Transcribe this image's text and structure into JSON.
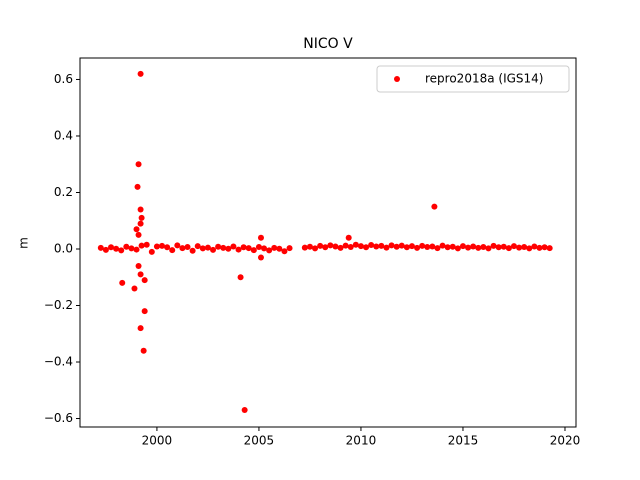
{
  "chart_data": {
    "type": "scatter",
    "title": "NICO V",
    "ylabel": "m",
    "series": [
      {
        "name": "repro2018a (IGS14)",
        "color": "#ff0000",
        "x": [
          1997.25,
          1997.5,
          1997.75,
          1998,
          1998.25,
          1998.5,
          1998.75,
          1999,
          1999.25,
          1999.5,
          1999.75,
          2000,
          2000.25,
          2000.5,
          2000.75,
          2001,
          2001.25,
          2001.5,
          2001.75,
          2002,
          2002.25,
          2002.5,
          2002.75,
          2003,
          2003.25,
          2003.5,
          2003.75,
          2004,
          2004.25,
          2004.5,
          2004.75,
          2005,
          2005.25,
          2005.5,
          2005.75,
          2006,
          2006.25,
          2006.5,
          2007.25,
          2007.5,
          2007.75,
          2008,
          2008.25,
          2008.5,
          2008.75,
          2009,
          2009.25,
          2009.5,
          2009.75,
          2010,
          2010.25,
          2010.5,
          2010.75,
          2011,
          2011.25,
          2011.5,
          2011.75,
          2012,
          2012.25,
          2012.5,
          2012.75,
          2013,
          2013.25,
          2013.5,
          2013.75,
          2014,
          2014.25,
          2014.5,
          2014.75,
          2015,
          2015.25,
          2015.5,
          2015.75,
          2016,
          2016.25,
          2016.5,
          2016.75,
          2017,
          2017.25,
          2017.5,
          2017.75,
          2018,
          2018.25,
          2018.5,
          2018.75,
          2019,
          2019.25,
          1999.2,
          1999.1,
          1999.05,
          1999.2,
          1999.25,
          1999.2,
          1999.0,
          1999.1,
          1998.3,
          1998.9,
          1999.2,
          1999.4,
          1999.35,
          1999.4,
          1999.1,
          1999.2,
          2004.1,
          2004.3,
          2013.6,
          2009.4,
          2005.1,
          2005.1
        ],
        "values": [
          0.004,
          -0.003,
          0.006,
          0.001,
          -0.005,
          0.008,
          0.002,
          -0.002,
          0.012,
          0.015,
          -0.01,
          0.009,
          0.011,
          0.006,
          -0.004,
          0.013,
          0.003,
          0.007,
          -0.006,
          0.01,
          0.002,
          0.005,
          -0.003,
          0.008,
          0.004,
          0.001,
          0.009,
          -0.002,
          0.006,
          0.003,
          -0.004,
          0.007,
          0.002,
          -0.005,
          0.004,
          0.001,
          -0.008,
          0.003,
          0.005,
          0.008,
          0.002,
          0.011,
          0.006,
          0.013,
          0.009,
          0.004,
          0.012,
          0.007,
          0.015,
          0.01,
          0.006,
          0.014,
          0.009,
          0.011,
          0.005,
          0.013,
          0.008,
          0.012,
          0.006,
          0.01,
          0.004,
          0.011,
          0.007,
          0.009,
          0.003,
          0.012,
          0.006,
          0.008,
          0.002,
          0.01,
          0.005,
          0.009,
          0.004,
          0.007,
          0.002,
          0.011,
          0.006,
          0.008,
          0.003,
          0.01,
          0.005,
          0.007,
          0.002,
          0.009,
          0.004,
          0.006,
          0.003,
          0.62,
          0.3,
          0.22,
          0.14,
          0.11,
          0.09,
          0.07,
          0.05,
          -0.12,
          -0.14,
          -0.28,
          -0.22,
          -0.36,
          -0.11,
          -0.06,
          -0.09,
          -0.1,
          -0.57,
          0.15,
          0.04,
          0.04,
          -0.03
        ]
      }
    ],
    "xlim": [
      1996.23,
      2020.54
    ],
    "xticks": [
      2000,
      2005,
      2010,
      2015,
      2020
    ],
    "ylim": [
      -0.63,
      0.676
    ],
    "yticks": [
      {
        "value": -0.6,
        "label": "−0.6"
      },
      {
        "value": -0.4,
        "label": "−0.4"
      },
      {
        "value": -0.2,
        "label": "−0.2"
      },
      {
        "value": 0,
        "label": "0.0"
      },
      0.2,
      0.4,
      0.6
    ],
    "legend": "upper right"
  }
}
